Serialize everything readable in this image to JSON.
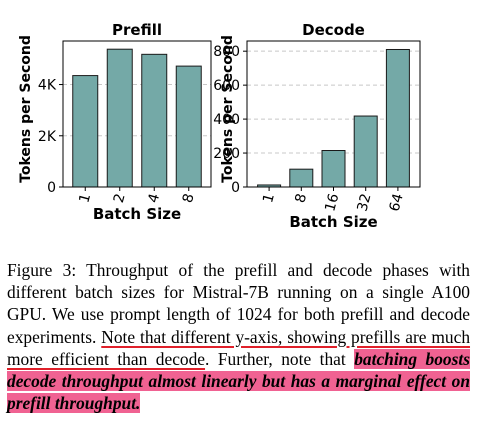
{
  "chart_data": [
    {
      "type": "bar",
      "title": "Prefill",
      "xlabel": "Batch Size",
      "ylabel": "Tokens per Second",
      "categories": [
        "1",
        "2",
        "4",
        "8"
      ],
      "values": [
        4350,
        5380,
        5180,
        4720
      ],
      "ylim": [
        0,
        5700
      ],
      "yticks": [
        0,
        2000,
        4000
      ],
      "ytick_labels": [
        "0",
        "2K",
        "4K"
      ],
      "grid": "horizontal dashed",
      "bar_color": "#74a9a7"
    },
    {
      "type": "bar",
      "title": "Decode",
      "xlabel": "Batch Size",
      "ylabel": "Tokens per Second",
      "categories": [
        "1",
        "8",
        "16",
        "32",
        "64"
      ],
      "values": [
        12,
        105,
        215,
        418,
        810
      ],
      "ylim": [
        0,
        860
      ],
      "yticks": [
        0,
        200,
        400,
        600,
        800
      ],
      "ytick_labels": [
        "0",
        "200",
        "400",
        "600",
        "800"
      ],
      "grid": "horizontal dashed",
      "bar_color": "#74a9a7"
    }
  ],
  "caption": {
    "part1": "Figure 3: Throughput of the prefill and decode phases with different batch sizes for Mistral-7B running on a single A100 GPU. We use prompt length of 1024 for both prefill and decode experiments. ",
    "underlined": "Note that different y-axis, showing prefills are much more efficient than decode",
    "part2": ". Further, note that ",
    "highlighted": "batching boosts decode throughput almost linearly but has a marginal effect on prefill throughput."
  }
}
